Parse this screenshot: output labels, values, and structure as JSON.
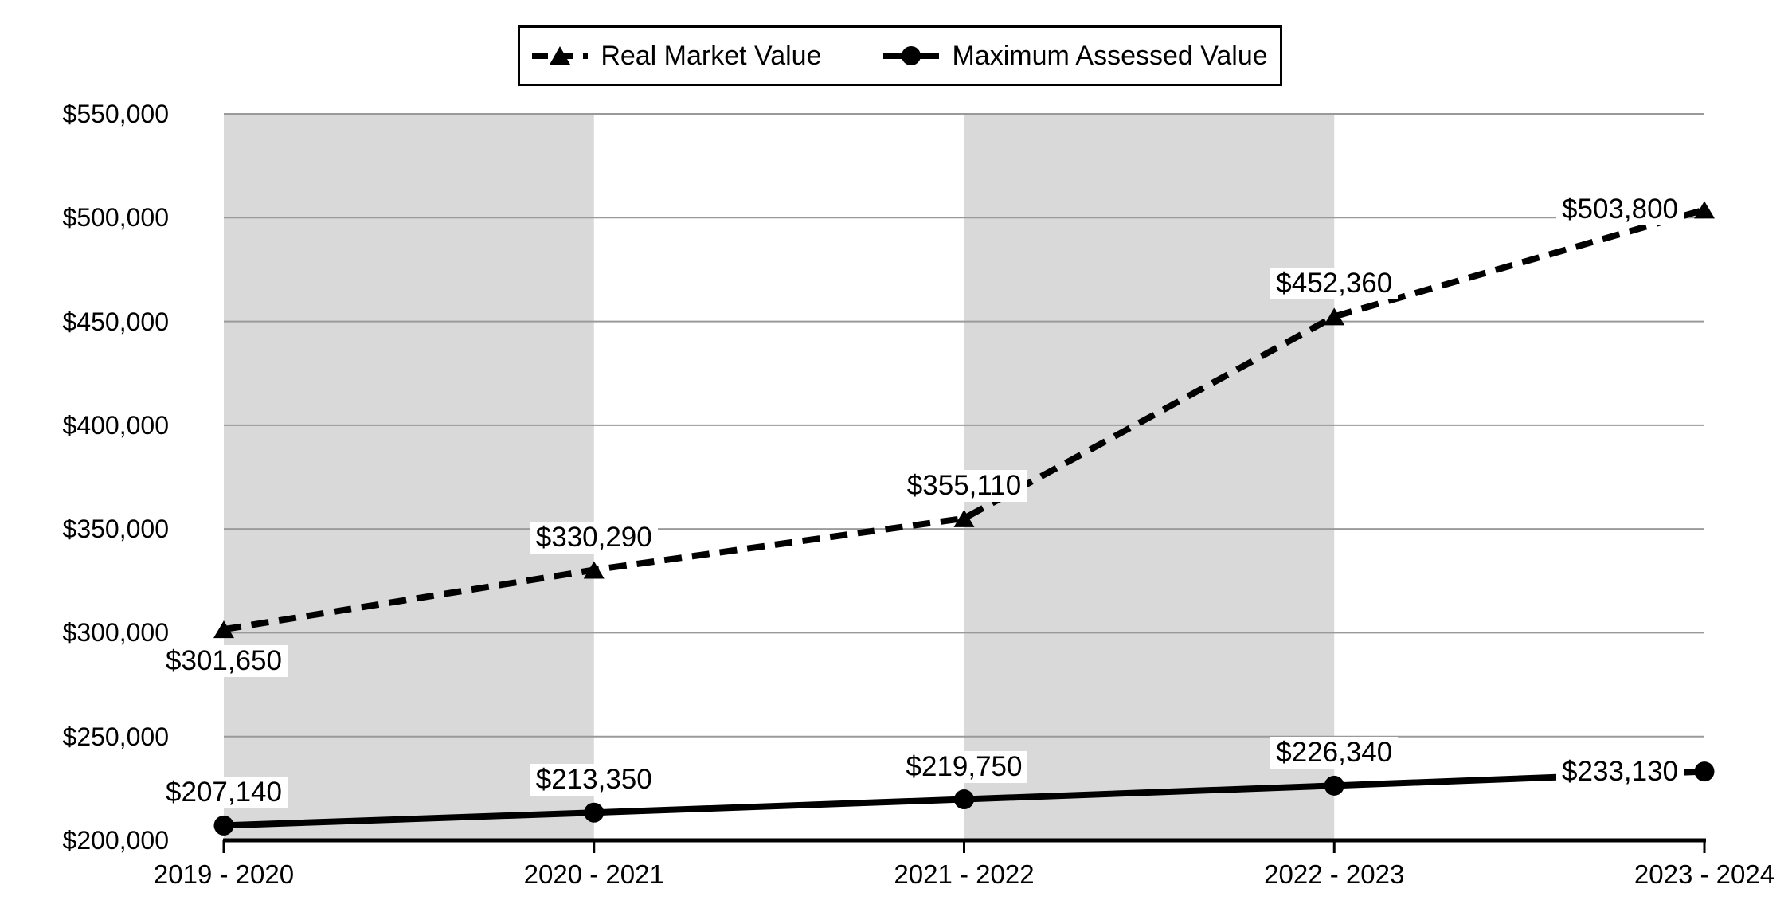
{
  "chart_data": {
    "type": "line",
    "title": "",
    "categories": [
      "2019 - 2020",
      "2020 - 2021",
      "2021 - 2022",
      "2022 - 2023",
      "2023 - 2024"
    ],
    "series": [
      {
        "name": "Real Market Value",
        "values": [
          301650,
          330290,
          355110,
          452360,
          503800
        ],
        "labels": [
          "$301,650",
          "$330,290",
          "$355,110",
          "$452,360",
          "$503,800"
        ],
        "label_positions": [
          "below",
          "above",
          "above",
          "above",
          "left"
        ],
        "line_style": "dashed",
        "marker": "triangle",
        "color": "#000000"
      },
      {
        "name": "Maximum Assessed Value",
        "values": [
          207140,
          213350,
          219750,
          226340,
          233130
        ],
        "labels": [
          "$207,140",
          "$213,350",
          "$219,750",
          "$226,340",
          "$233,130"
        ],
        "label_positions": [
          "above",
          "above",
          "above",
          "above",
          "left"
        ],
        "line_style": "solid",
        "marker": "circle",
        "color": "#000000"
      }
    ],
    "y_axis": {
      "min": 200000,
      "max": 550000,
      "step": 50000,
      "tick_labels": [
        "$200,000",
        "$250,000",
        "$300,000",
        "$350,000",
        "$400,000",
        "$450,000",
        "$500,000",
        "$550,000"
      ]
    },
    "x_axis": {
      "tick_labels": [
        "2019 - 2020",
        "2020 - 2021",
        "2021 - 2022",
        "2022 - 2023",
        "2023 - 2024"
      ]
    },
    "legend": {
      "position": "top",
      "entries": [
        "Real Market Value",
        "Maximum Assessed Value"
      ]
    },
    "style": {
      "band_color": "#d9d9d9",
      "gridline_color": "#9a9a9a",
      "axis_color": "#000000",
      "plot_background": "#ffffff",
      "alternating_bands": [
        0,
        2
      ]
    }
  }
}
